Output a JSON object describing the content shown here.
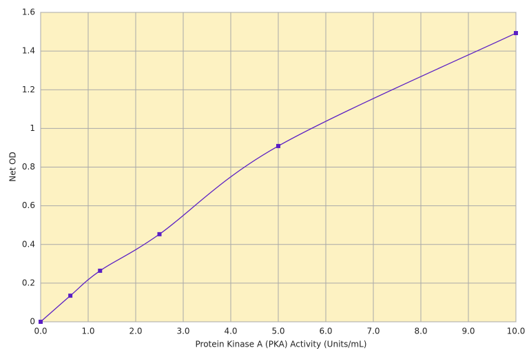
{
  "chart_data": {
    "type": "line",
    "x_label": "Protein Kinase A (PKA) Activity (Units/mL)",
    "y_label": "Net OD",
    "x": [
      0,
      0.625,
      1.25,
      2.5,
      5,
      10
    ],
    "values": [
      0,
      0.135,
      0.264,
      0.453,
      0.909,
      1.493
    ],
    "color": "#5a1fc4",
    "smooth": true,
    "grid": true,
    "xlim": [
      0,
      10
    ],
    "xticks": [
      {
        "value": 0,
        "label": "0.0"
      },
      {
        "value": 1,
        "label": "1.0"
      },
      {
        "value": 2,
        "label": "2.0"
      },
      {
        "value": 3,
        "label": "3.0"
      },
      {
        "value": 4,
        "label": "4.0"
      },
      {
        "value": 5,
        "label": "5.0"
      },
      {
        "value": 6,
        "label": "6.0"
      },
      {
        "value": 7,
        "label": "7.0"
      },
      {
        "value": 8,
        "label": "8.0"
      },
      {
        "value": 9,
        "label": "9.0"
      },
      {
        "value": 10,
        "label": "10.0"
      }
    ],
    "ylim": [
      0,
      1.6
    ],
    "yticks": [
      0,
      0.2,
      0.4,
      0.6,
      0.8,
      1,
      1.2,
      1.4,
      1.6
    ]
  }
}
